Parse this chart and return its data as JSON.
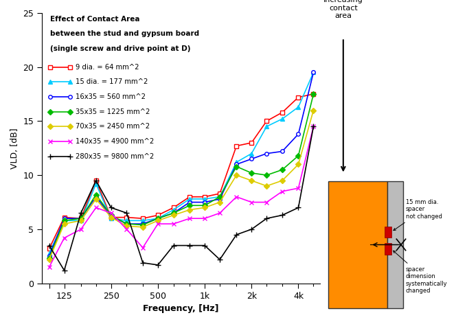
{
  "title_line1": "Effect of Contact Area",
  "title_line2": "between the stud and gypsum board",
  "title_line3": "(single screw and drive point at D)",
  "xlabel": "Frequency, [Hz]",
  "ylabel": "VLD, [dB]",
  "ylim": [
    0,
    25
  ],
  "freq_values": [
    100,
    125,
    160,
    200,
    250,
    315,
    400,
    500,
    630,
    800,
    1000,
    1250,
    1600,
    2000,
    2500,
    3150,
    4000,
    5000
  ],
  "major_tick_freqs": [
    100,
    125,
    250,
    500,
    1000,
    2000,
    4000
  ],
  "major_tick_labels": [
    "",
    "125",
    "250",
    "500",
    "1k",
    "2k",
    "4k"
  ],
  "series": [
    {
      "label": "9 dia. = 64 mm^2",
      "color": "#ff0000",
      "marker": "s",
      "markerfacecolor": "white",
      "markersize": 4,
      "values": [
        3.2,
        6.1,
        6.0,
        9.5,
        6.1,
        6.1,
        6.0,
        6.3,
        7.0,
        8.0,
        8.0,
        8.3,
        12.7,
        13.0,
        15.0,
        15.8,
        17.2,
        17.5
      ]
    },
    {
      "label": "15 dia. = 177 mm^2",
      "color": "#00ccff",
      "marker": "^",
      "markerfacecolor": "#00ccff",
      "markersize": 4,
      "values": [
        2.8,
        5.8,
        5.8,
        9.2,
        6.0,
        5.8,
        5.8,
        6.0,
        6.8,
        7.8,
        7.8,
        8.0,
        11.2,
        12.0,
        14.5,
        15.2,
        16.3,
        19.5
      ]
    },
    {
      "label": "16x35 = 560 mm^2",
      "color": "#0000ff",
      "marker": "o",
      "markerfacecolor": "white",
      "markersize": 4,
      "values": [
        2.5,
        6.0,
        6.0,
        8.0,
        6.2,
        5.5,
        5.5,
        6.0,
        6.5,
        7.5,
        7.5,
        7.8,
        11.0,
        11.5,
        12.0,
        12.2,
        13.8,
        19.5
      ]
    },
    {
      "label": "35x35 = 1225 mm^2",
      "color": "#00bb00",
      "marker": "D",
      "markerfacecolor": "#00bb00",
      "markersize": 4,
      "values": [
        2.3,
        5.8,
        6.0,
        8.2,
        6.3,
        5.5,
        5.4,
        6.0,
        6.5,
        7.2,
        7.2,
        8.0,
        10.8,
        10.2,
        10.0,
        10.5,
        11.8,
        17.5
      ]
    },
    {
      "label": "70x35 = 2450 mm^2",
      "color": "#ddcc00",
      "marker": "D",
      "markerfacecolor": "#ddcc00",
      "markersize": 4,
      "values": [
        2.2,
        5.5,
        5.8,
        7.8,
        6.1,
        5.3,
        5.2,
        5.8,
        6.3,
        6.8,
        7.0,
        7.5,
        10.0,
        9.5,
        9.0,
        9.5,
        11.0,
        16.0
      ]
    },
    {
      "label": "140x35 = 4900 mm^2",
      "color": "#ff00ff",
      "marker": "x",
      "markerfacecolor": "#ff00ff",
      "markersize": 5,
      "values": [
        1.5,
        4.2,
        5.0,
        7.0,
        6.5,
        5.0,
        3.3,
        5.5,
        5.5,
        6.0,
        6.0,
        6.5,
        8.0,
        7.5,
        7.5,
        8.5,
        8.8,
        14.5
      ]
    },
    {
      "label": "280x35 = 9800 mm^2",
      "color": "#000000",
      "marker": "+",
      "markerfacecolor": "#000000",
      "markersize": 6,
      "values": [
        3.5,
        1.2,
        6.5,
        9.5,
        7.0,
        6.5,
        1.9,
        1.7,
        3.5,
        3.5,
        3.5,
        2.2,
        4.5,
        5.0,
        6.0,
        6.3,
        7.0,
        14.5
      ]
    }
  ],
  "arrow_text": "Increasing\ncontact\narea",
  "annotation1": "15 mm dia.\nspacer\nnot changed",
  "annotation2": "spacer\ndimension\nsystematically\nchanged",
  "stud_color": "#FF8C00",
  "board_color": "#BBBBBB",
  "spacer_color": "#cc0000"
}
